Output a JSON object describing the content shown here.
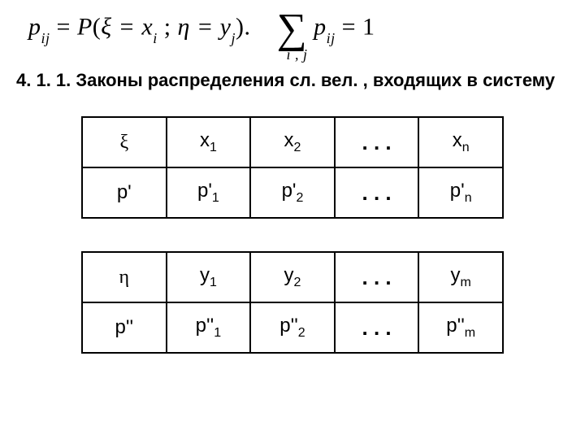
{
  "formula": {
    "lhs_p": "p",
    "lhs_sub": "ij",
    "eq": " = ",
    "P": "P",
    "open": "(",
    "xi": "ξ",
    "eq_xi": " = x",
    "xi_sub": "i",
    "sep": " ; ",
    "eta": "η",
    "eq_eta": " = y",
    "eta_sub": "j",
    "close": ")",
    "dot": ".",
    "sigma": "∑",
    "sigma_sub": "i , j",
    "rhs_p": "p",
    "rhs_sub": "ij",
    "eq2": " = 1"
  },
  "heading": "4. 1. 1. Законы распределения сл. вел. , входящих в систему",
  "table1": {
    "r1c1": "ξ",
    "r1c2_base": "x",
    "r1c2_sub": "1",
    "r1c3_base": "x",
    "r1c3_sub": "2",
    "r1c4": ". . .",
    "r1c5_base": "x",
    "r1c5_sub": "n",
    "r2c1": "p'",
    "r2c2_base": "p'",
    "r2c2_sub": "1",
    "r2c3_base": "p'",
    "r2c3_sub": "2",
    "r2c4": ". . .",
    "r2c5_base": "p'",
    "r2c5_sub": "n"
  },
  "table2": {
    "r1c1": "η",
    "r1c2_base": "y",
    "r1c2_sub": "1",
    "r1c3_base": "y",
    "r1c3_sub": "2",
    "r1c4": ". . .",
    "r1c5_base": "y",
    "r1c5_sub": "m",
    "r2c1": "p''",
    "r2c2_base": "p''",
    "r2c2_sub": "1",
    "r2c3_base": "p''",
    "r2c3_sub": "2",
    "r2c4": ". . .",
    "r2c5_base": "p''",
    "r2c5_sub": "m"
  }
}
